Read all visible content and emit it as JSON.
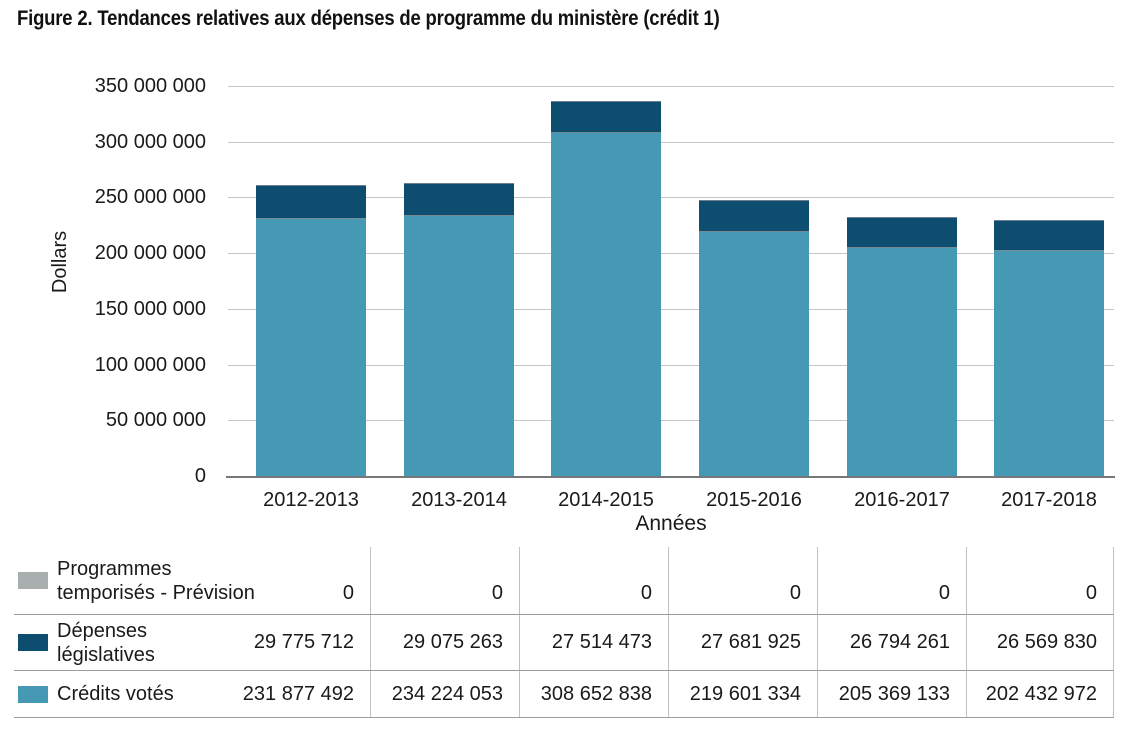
{
  "figure": {
    "title": "Figure 2. Tendances relatives aux dépenses de programme du ministère (crédit 1)"
  },
  "chart_data": {
    "type": "bar",
    "stacked": true,
    "title": "Figure 2. Tendances relatives aux dépenses de programme du ministère (crédit 1)",
    "xlabel": "Années",
    "ylabel": "Dollars",
    "ylim": [
      0,
      350000000
    ],
    "grid": true,
    "legend_position": "bottom-table",
    "categories": [
      "2012-2013",
      "2013-2014",
      "2014-2015",
      "2015-2016",
      "2016-2017",
      "2017-2018"
    ],
    "yticks": [
      {
        "value": 0,
        "label": "0"
      },
      {
        "value": 50000000,
        "label": "50 000 000"
      },
      {
        "value": 100000000,
        "label": "100 000 000"
      },
      {
        "value": 150000000,
        "label": "150 000 000"
      },
      {
        "value": 200000000,
        "label": "200 000 000"
      },
      {
        "value": 250000000,
        "label": "250 000 000"
      },
      {
        "value": 300000000,
        "label": "300 000 000"
      },
      {
        "value": 350000000,
        "label": "350 000 000"
      }
    ],
    "series": [
      {
        "name": "Programmes temporisés - Prévision",
        "label_lines": [
          "Programmes",
          "temporisés - Prévision"
        ],
        "color": "#a9aeae",
        "values": [
          0,
          0,
          0,
          0,
          0,
          0
        ],
        "display": [
          "0",
          "0",
          "0",
          "0",
          "0",
          "0"
        ]
      },
      {
        "name": "Dépenses législatives",
        "label_lines": [
          "Dépenses",
          "législatives"
        ],
        "color": "#0d4e70",
        "values": [
          29775712,
          29075263,
          27514473,
          27681925,
          26794261,
          26569830
        ],
        "display": [
          "29 775 712",
          "29 075 263",
          "27 514 473",
          "27 681 925",
          "26 794 261",
          "26 569 830"
        ]
      },
      {
        "name": "Crédits votés",
        "label_lines": [
          "Crédits votés"
        ],
        "color": "#4599b5",
        "values": [
          231877492,
          234224053,
          308652838,
          219601334,
          205369133,
          202432972
        ],
        "display": [
          "231 877 492",
          "234 224 053",
          "308 652 838",
          "219 601 334",
          "205 369 133",
          "202 432 972"
        ]
      }
    ],
    "stack_order_bottom_to_top": [
      "Crédits votés",
      "Dépenses législatives",
      "Programmes temporisés - Prévision"
    ],
    "colors": {
      "gridline": "#c7c7c7",
      "axis_line": "#75777b",
      "text": "#1a1a1a",
      "table_row_line": "#9c9c9c",
      "table_column_line": "#c0c0c0"
    }
  }
}
